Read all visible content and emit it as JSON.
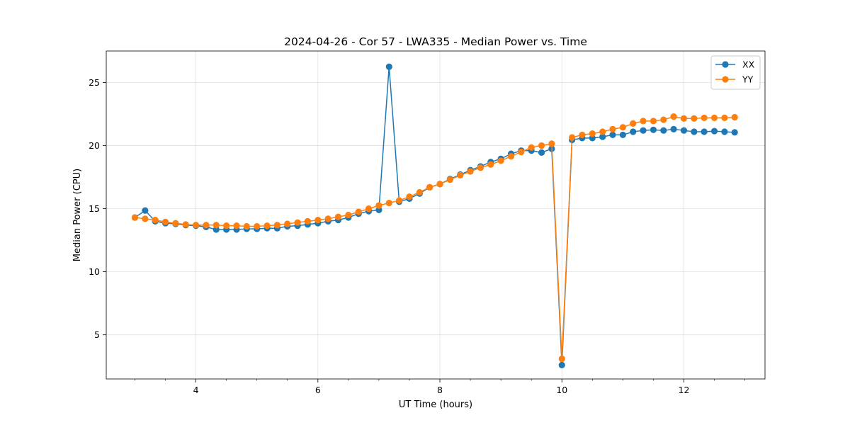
{
  "chart_data": {
    "type": "line",
    "title": "2024-04-26 - Cor 57 - LWA335 - Median Power vs. Time",
    "xlabel": "UT Time (hours)",
    "ylabel": "Median Power (CPU)",
    "xlim": [
      2.53,
      13.33
    ],
    "ylim": [
      1.5,
      27.5
    ],
    "xticks": [
      4,
      6,
      8,
      10,
      12
    ],
    "yticks": [
      5,
      10,
      15,
      20,
      25
    ],
    "grid": true,
    "legend_position": "top-right",
    "x": [
      3.0,
      3.167,
      3.333,
      3.5,
      3.667,
      3.833,
      4.0,
      4.167,
      4.333,
      4.5,
      4.667,
      4.833,
      5.0,
      5.167,
      5.333,
      5.5,
      5.667,
      5.833,
      6.0,
      6.167,
      6.333,
      6.5,
      6.667,
      6.833,
      7.0,
      7.167,
      7.333,
      7.5,
      7.667,
      7.833,
      8.0,
      8.167,
      8.333,
      8.5,
      8.667,
      8.833,
      9.0,
      9.167,
      9.333,
      9.5,
      9.667,
      9.833,
      10.0,
      10.167,
      10.333,
      10.5,
      10.667,
      10.833,
      11.0,
      11.167,
      11.333,
      11.5,
      11.667,
      11.833,
      12.0,
      12.167,
      12.333,
      12.5,
      12.667,
      12.833
    ],
    "series": [
      {
        "name": "XX",
        "color": "#1f77b4",
        "values": [
          14.3,
          14.85,
          14.0,
          13.85,
          13.8,
          13.7,
          13.65,
          13.55,
          13.35,
          13.35,
          13.35,
          13.4,
          13.4,
          13.45,
          13.45,
          13.6,
          13.65,
          13.75,
          13.85,
          14.0,
          14.1,
          14.3,
          14.6,
          14.8,
          14.9,
          26.25,
          15.55,
          15.8,
          16.2,
          16.7,
          16.95,
          17.35,
          17.7,
          18.05,
          18.35,
          18.7,
          18.95,
          19.35,
          19.6,
          19.6,
          19.45,
          19.75,
          2.6,
          20.45,
          20.6,
          20.6,
          20.7,
          20.85,
          20.85,
          21.1,
          21.2,
          21.25,
          21.2,
          21.3,
          21.2,
          21.1,
          21.1,
          21.15,
          21.1,
          21.05
        ]
      },
      {
        "name": "YY",
        "color": "#ff7f0e",
        "values": [
          14.3,
          14.2,
          14.1,
          13.95,
          13.85,
          13.75,
          13.7,
          13.7,
          13.7,
          13.65,
          13.65,
          13.6,
          13.6,
          13.65,
          13.7,
          13.8,
          13.9,
          14.0,
          14.1,
          14.2,
          14.35,
          14.5,
          14.75,
          15.0,
          15.25,
          15.45,
          15.65,
          15.95,
          16.3,
          16.7,
          16.95,
          17.3,
          17.65,
          17.95,
          18.25,
          18.5,
          18.8,
          19.15,
          19.5,
          19.85,
          20.0,
          20.15,
          3.1,
          20.65,
          20.85,
          20.95,
          21.1,
          21.3,
          21.45,
          21.75,
          21.95,
          21.95,
          22.05,
          22.3,
          22.15,
          22.15,
          22.2,
          22.2,
          22.2,
          22.25
        ]
      }
    ]
  }
}
